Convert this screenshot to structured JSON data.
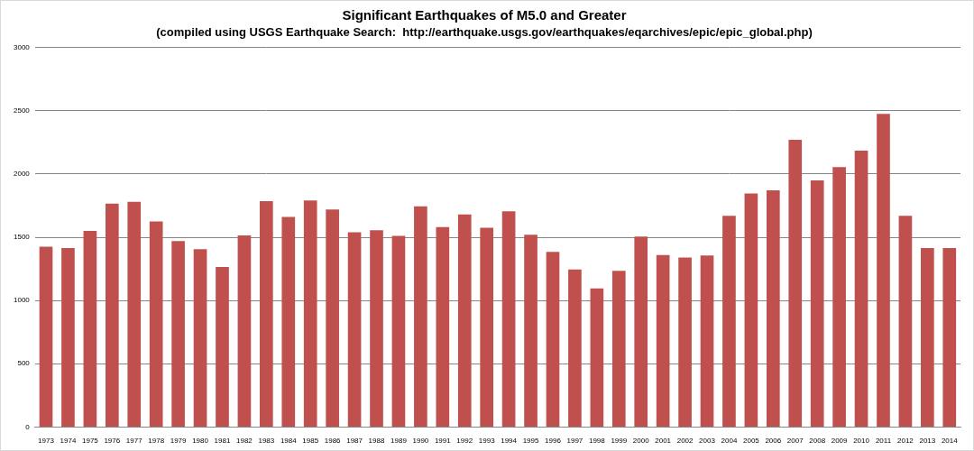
{
  "chart_data": {
    "type": "bar",
    "title": "Significant Earthquakes of M5.0 and Greater",
    "subtitle": "(compiled using USGS Earthquake Search:  http://earthquake.usgs.gov/earthquakes/eqarchives/epic/epic_global.php)",
    "categories": [
      "1973",
      "1974",
      "1975",
      "1976",
      "1977",
      "1978",
      "1979",
      "1980",
      "1981",
      "1982",
      "1983",
      "1984",
      "1985",
      "1986",
      "1987",
      "1988",
      "1989",
      "1990",
      "1991",
      "1992",
      "1993",
      "1994",
      "1995",
      "1996",
      "1997",
      "1998",
      "1999",
      "2000",
      "2001",
      "2002",
      "2003",
      "2004",
      "2005",
      "2006",
      "2007",
      "2008",
      "2009",
      "2010",
      "2011",
      "2012",
      "2013",
      "2014"
    ],
    "values": [
      1425,
      1415,
      1550,
      1765,
      1780,
      1625,
      1470,
      1405,
      1265,
      1515,
      1785,
      1660,
      1790,
      1720,
      1540,
      1555,
      1510,
      1745,
      1580,
      1680,
      1575,
      1705,
      1520,
      1385,
      1245,
      1095,
      1235,
      1505,
      1360,
      1340,
      1355,
      1670,
      1845,
      1870,
      2270,
      1950,
      2055,
      2185,
      2475,
      1670,
      1415,
      1415
    ],
    "color": "#c0504d",
    "ylim": [
      0,
      3000
    ],
    "yticks": [
      0,
      500,
      1000,
      1500,
      2000,
      2500,
      3000
    ],
    "grid": true
  }
}
